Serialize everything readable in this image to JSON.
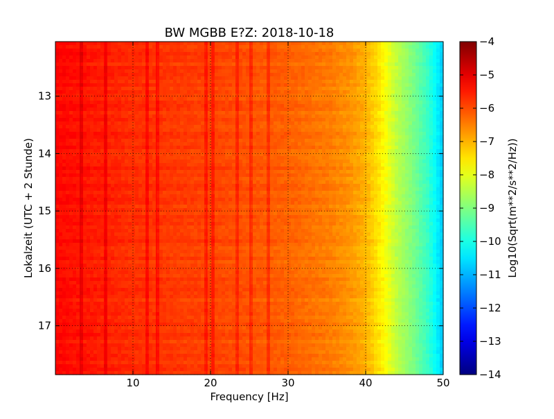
{
  "chart_data": {
    "type": "heatmap",
    "title": "BW MGBB E?Z: 2018-10-18",
    "xlabel": "Frequency [Hz]",
    "ylabel": "Lokalzeit (UTC + 2 Stunde)",
    "xlim": [
      0,
      50
    ],
    "ylim": [
      12.05,
      17.85
    ],
    "y_inverted": true,
    "x_ticks": [
      10,
      20,
      30,
      40,
      50
    ],
    "y_ticks": [
      13,
      14,
      15,
      16,
      17
    ],
    "grid": true,
    "colormap": "jet",
    "colorbar": {
      "label": "Log10(Sqrt(m**2/s**2/Hz))",
      "range": [
        -14,
        -4
      ],
      "ticks": [
        -4,
        -5,
        -6,
        -7,
        -8,
        -9,
        -10,
        -11,
        -12,
        -13,
        -14
      ]
    },
    "spectral_profile": {
      "frequency_hz": [
        0,
        5,
        10,
        20,
        30,
        35,
        38,
        40,
        42,
        44,
        46,
        48,
        50
      ],
      "log10_amplitude": [
        -5.3,
        -5.5,
        -5.7,
        -5.9,
        -6.2,
        -6.45,
        -6.7,
        -7.0,
        -7.6,
        -8.4,
        -9.0,
        -9.7,
        -10.8
      ]
    },
    "persistent_lines_hz": [
      3.2,
      6.5,
      11.8,
      13.0,
      19.5,
      20.3,
      23.5,
      25.1,
      27.5
    ],
    "colors": {
      "jet": [
        "#00007f",
        "#0000ff",
        "#007fff",
        "#00ffff",
        "#7fff7f",
        "#ffff00",
        "#ff7f00",
        "#ff0000",
        "#7f0000"
      ]
    }
  }
}
